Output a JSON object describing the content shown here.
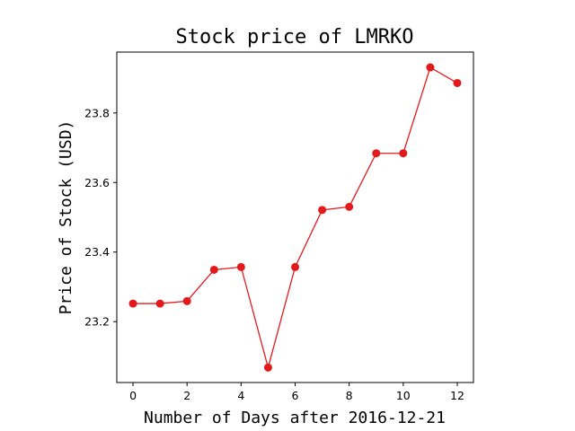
{
  "chart_data": {
    "type": "line",
    "title": "Stock price of LMRKO",
    "xlabel": "Number of Days after 2016-12-21",
    "ylabel": "Price of Stock (USD)",
    "x": [
      0,
      1,
      2,
      3,
      4,
      5,
      6,
      7,
      8,
      9,
      10,
      11,
      12
    ],
    "series": [
      {
        "values": [
          23.252,
          23.252,
          23.259,
          23.349,
          23.357,
          23.068,
          23.357,
          23.521,
          23.53,
          23.684,
          23.684,
          23.931,
          23.886
        ],
        "color": "#e31a1c"
      }
    ],
    "xlim": [
      -0.6,
      12.6
    ],
    "ylim": [
      23.025,
      23.975
    ],
    "xticks": [
      0,
      2,
      4,
      6,
      8,
      10,
      12
    ],
    "yticks": [
      23.2,
      23.4,
      23.6,
      23.8
    ],
    "xtick_labels": [
      "0",
      "2",
      "4",
      "6",
      "8",
      "10",
      "12"
    ],
    "ytick_labels": [
      "23.2",
      "23.4",
      "23.6",
      "23.8"
    ],
    "grid": false,
    "legend": "none"
  }
}
